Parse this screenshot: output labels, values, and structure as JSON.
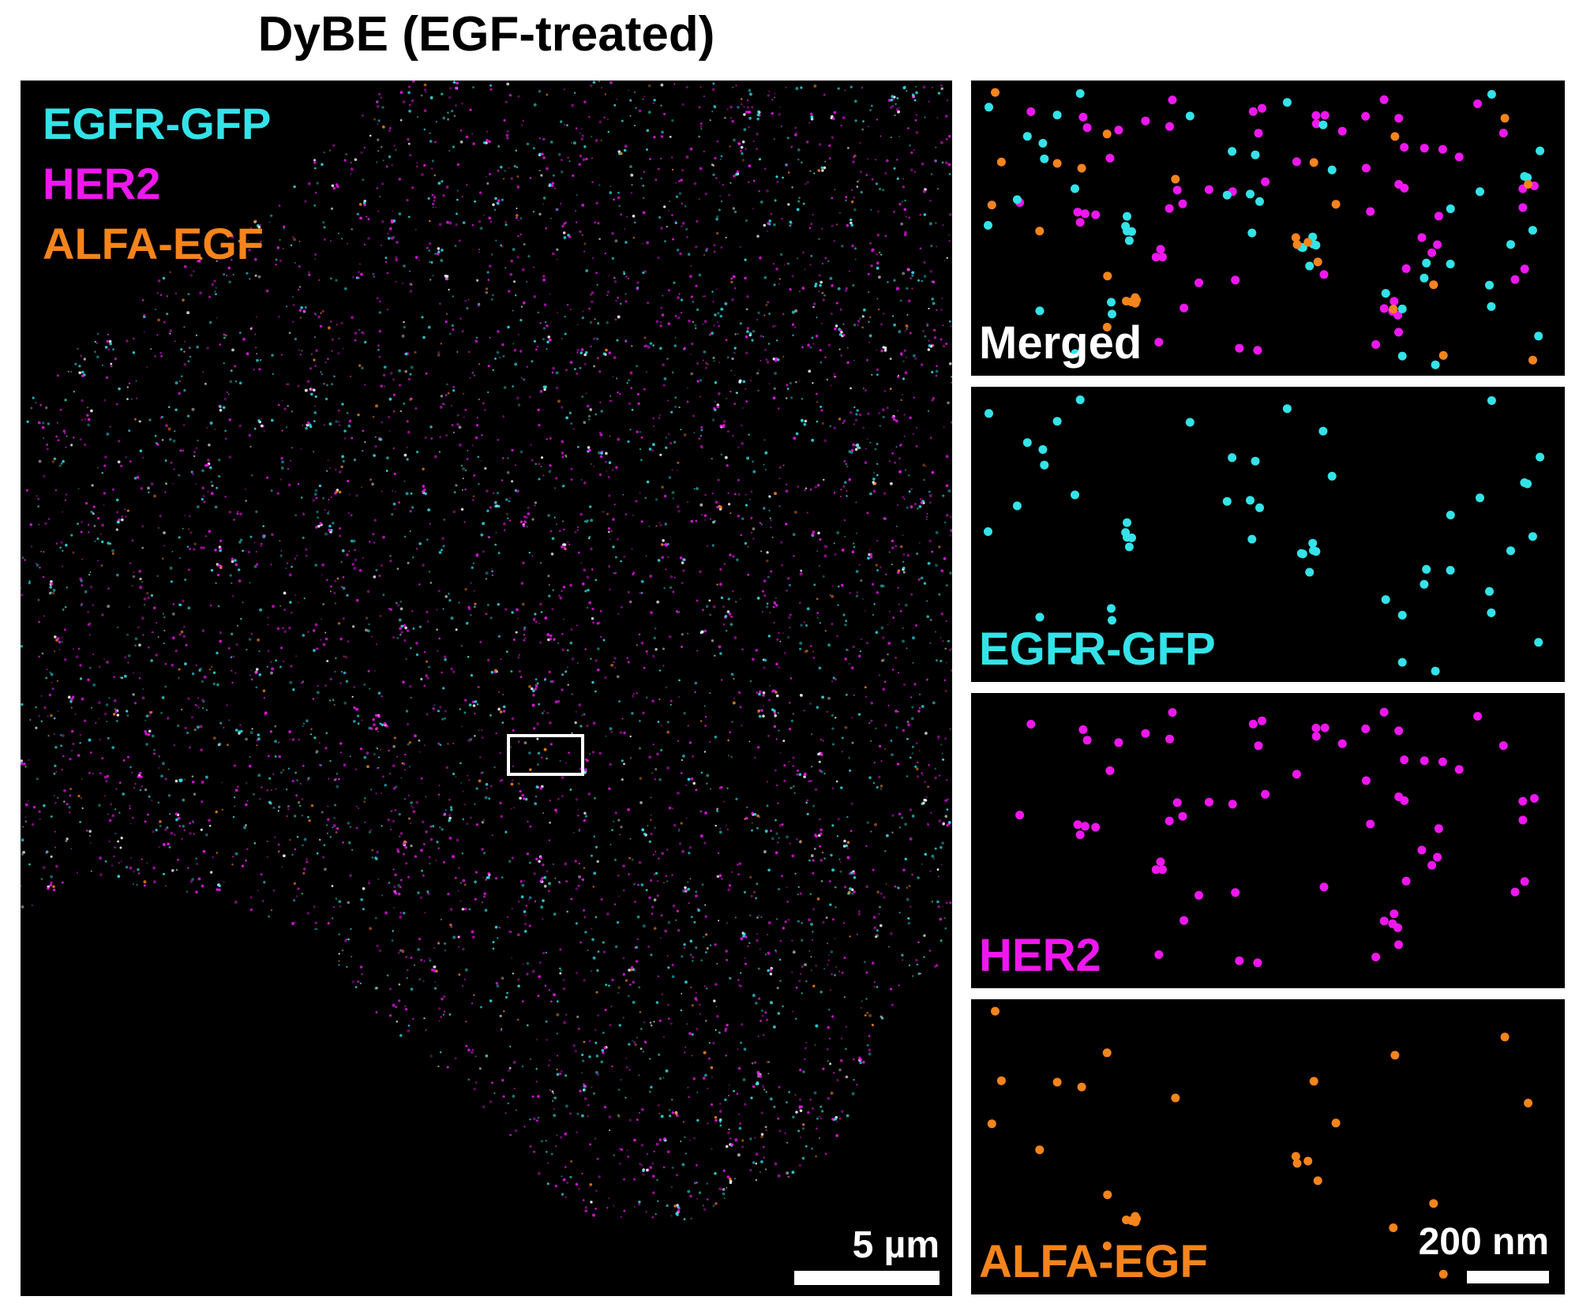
{
  "figure": {
    "title": "DyBE (EGF-treated)",
    "main_panel": {
      "legend": [
        {
          "label": "EGFR-GFP",
          "color": "#33e3e8"
        },
        {
          "label": "HER2",
          "color": "#ee18ee"
        },
        {
          "label": "ALFA-EGF",
          "color": "#f5841c"
        }
      ],
      "roi_box": "white rectangle",
      "scale_bar_label": "5 µm"
    },
    "insets": [
      {
        "label": "Merged",
        "label_color": "#ffffff",
        "channels": [
          "cyan",
          "magenta",
          "orange"
        ]
      },
      {
        "label": "EGFR-GFP",
        "label_color": "#33e3e8",
        "channels": [
          "cyan"
        ]
      },
      {
        "label": "HER2",
        "label_color": "#ee18ee",
        "channels": [
          "magenta"
        ]
      },
      {
        "label": "ALFA-EGF",
        "label_color": "#f5841c",
        "channels": [
          "orange"
        ]
      }
    ],
    "inset_scale_bar_label": "200 nm",
    "colors": {
      "cyan": "#33e3e8",
      "magenta": "#ee18ee",
      "orange": "#f5841c",
      "background": "#000000"
    }
  }
}
